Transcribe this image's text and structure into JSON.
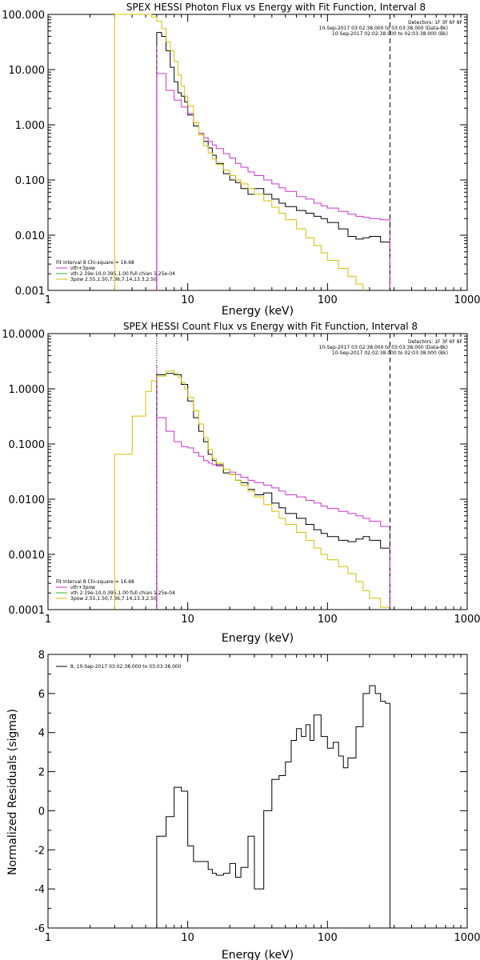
{
  "colors": {
    "data": "#000000",
    "total": "#cc33cc",
    "vth": "#cc2222",
    "pow": "#d4bf00",
    "green": "#22bb22"
  },
  "chart_data": [
    {
      "type": "line",
      "title": "SPEX HESSI Photon Flux vs Energy with Fit Function, Interval 8",
      "xlabel": "Energy (keV)",
      "ylabel": "",
      "x_scale": "log",
      "y_scale": "log",
      "xlim": [
        1,
        1000
      ],
      "ylim": [
        0.001,
        100
      ],
      "x_tick_labels": [
        "1",
        "10",
        "100",
        "1000"
      ],
      "y_tick_labels": [
        "100.000",
        "10.000",
        "1.000",
        "0.100",
        "0.010",
        "0.001"
      ],
      "y_tick_values": [
        100,
        10,
        1,
        0.1,
        0.01,
        0.001
      ],
      "vline_energy": 280,
      "vline_dotted": null,
      "header_lines": [
        "Detectors: 1F 3F 6F 8F",
        "10-Sep-2017 03:02:38.000 to 03:03:38.000 (Data-Bk)",
        "10-Sep-2017 02:02:38.000 to 02:03:38.000 (Bk)"
      ],
      "legend_lines": [
        "Fit Interval 8   Chi-square = 16.68",
        "vth+3pow",
        "vth 2.19e-10,0.395,1.00  full chian 1.25e-04",
        "3pow 2.55,1.50,7.36,7.14,13.3,2.50"
      ],
      "series": [
        {
          "name": "Data-Bk",
          "color": "#000000",
          "x": [
            6,
            6.5,
            7,
            7.5,
            8,
            8.5,
            9,
            9.5,
            10,
            11,
            12,
            13,
            14,
            15,
            16,
            18,
            20,
            22,
            24,
            27,
            30,
            35,
            40,
            45,
            50,
            60,
            70,
            80,
            90,
            100,
            120,
            140,
            160,
            180,
            200,
            240,
            280
          ],
          "y": [
            47,
            40,
            22,
            11,
            6,
            3.8,
            3.3,
            2.6,
            1.5,
            0.95,
            0.7,
            0.5,
            0.38,
            0.28,
            0.2,
            0.13,
            0.1,
            0.09,
            0.07,
            0.055,
            0.07,
            0.055,
            0.045,
            0.038,
            0.033,
            0.028,
            0.025,
            0.022,
            0.02,
            0.017,
            0.013,
            0.0095,
            0.0085,
            0.009,
            0.0095,
            0.0075,
            0.0065
          ]
        },
        {
          "name": "vth+3pow",
          "color": "#cc33cc",
          "x": [
            6,
            7,
            8,
            9,
            10,
            11,
            12,
            13,
            14,
            15,
            16,
            18,
            20,
            22,
            24,
            27,
            30,
            35,
            40,
            45,
            50,
            60,
            70,
            80,
            90,
            100,
            120,
            140,
            160,
            180,
            200,
            240,
            280
          ],
          "y": [
            8.5,
            4.2,
            2.8,
            2.1,
            1.6,
            1.1,
            0.7,
            0.58,
            0.5,
            0.43,
            0.37,
            0.3,
            0.25,
            0.2,
            0.17,
            0.14,
            0.12,
            0.1,
            0.085,
            0.072,
            0.062,
            0.05,
            0.045,
            0.038,
            0.034,
            0.031,
            0.027,
            0.024,
            0.022,
            0.021,
            0.02,
            0.019,
            0.018
          ]
        },
        {
          "name": "3pow",
          "color": "#d4bf00",
          "x": [
            3,
            3.5,
            4,
            4.5,
            5,
            5.5,
            6,
            6.5,
            7,
            7.5,
            8,
            8.5,
            9,
            9.5,
            10,
            11,
            12,
            13,
            14,
            15,
            16,
            18,
            20,
            22,
            24,
            27,
            30,
            35,
            40,
            45,
            50,
            60,
            70,
            80,
            90,
            100,
            120,
            140,
            160,
            180
          ],
          "y": [
            100,
            100,
            100,
            100,
            100,
            90,
            75,
            55,
            32,
            22,
            14,
            8,
            5,
            3.3,
            2.2,
            1.1,
            0.65,
            0.42,
            0.31,
            0.24,
            0.19,
            0.15,
            0.12,
            0.1,
            0.085,
            0.07,
            0.055,
            0.042,
            0.032,
            0.025,
            0.019,
            0.013,
            0.009,
            0.0065,
            0.0048,
            0.0035,
            0.0025,
            0.0018,
            0.0013,
            0.001
          ]
        }
      ]
    },
    {
      "type": "line",
      "title": "SPEX HESSI Count Flux vs Energy with Fit Function, Interval 8",
      "xlabel": "Energy (keV)",
      "ylabel": "",
      "x_scale": "log",
      "y_scale": "log",
      "xlim": [
        1,
        1000
      ],
      "ylim": [
        0.0001,
        10
      ],
      "x_tick_labels": [
        "1",
        "10",
        "100",
        "1000"
      ],
      "y_tick_labels": [
        "10.0000",
        "1.0000",
        "0.1000",
        "0.0100",
        "0.0010",
        "0.0001"
      ],
      "y_tick_values": [
        10,
        1,
        0.1,
        0.01,
        0.001,
        0.0001
      ],
      "vline_energy": 280,
      "vline_dotted": 6,
      "header_lines": [
        "Detectors: 1F 3F 6F 8F",
        "10-Sep-2017 03:02:38.000 to 03:03:38.000 (Data-Bk)",
        "10-Sep-2017 02:02:38.000 to 02:03:38.000 (Bk)"
      ],
      "legend_lines": [
        "Fit Interval 8   Chi-square = 16.68",
        "vth+3pow",
        "vth 2.19e-10,0.395,1.00  full chian 1.25e-04",
        "3pow 2.55,1.50,7.36,7.14,13.3,2.50"
      ],
      "series": [
        {
          "name": "Data-Bk",
          "color": "#000000",
          "x": [
            6,
            7,
            8,
            9,
            10,
            11,
            12,
            13,
            14,
            15,
            16,
            18,
            20,
            22,
            24,
            27,
            30,
            35,
            40,
            45,
            50,
            60,
            70,
            80,
            90,
            100,
            120,
            140,
            160,
            180,
            200,
            240,
            280
          ],
          "y": [
            1.8,
            1.9,
            1.8,
            1.2,
            0.6,
            0.3,
            0.17,
            0.11,
            0.065,
            0.05,
            0.042,
            0.03,
            0.028,
            0.022,
            0.02,
            0.015,
            0.012,
            0.013,
            0.0085,
            0.007,
            0.0055,
            0.0045,
            0.0035,
            0.0028,
            0.0024,
            0.0021,
            0.0018,
            0.0017,
            0.0019,
            0.0021,
            0.0018,
            0.0013,
            0.0009
          ]
        },
        {
          "name": "vth+3pow",
          "color": "#cc33cc",
          "x": [
            6,
            7,
            8,
            9,
            10,
            11,
            12,
            13,
            14,
            15,
            16,
            18,
            20,
            22,
            24,
            27,
            30,
            35,
            40,
            45,
            50,
            60,
            70,
            80,
            90,
            100,
            120,
            140,
            160,
            180,
            200,
            240,
            280
          ],
          "y": [
            0.3,
            0.17,
            0.11,
            0.09,
            0.085,
            0.07,
            0.06,
            0.05,
            0.045,
            0.042,
            0.04,
            0.035,
            0.031,
            0.028,
            0.025,
            0.022,
            0.02,
            0.018,
            0.016,
            0.014,
            0.012,
            0.011,
            0.0095,
            0.0085,
            0.0075,
            0.0068,
            0.006,
            0.0055,
            0.005,
            0.0045,
            0.004,
            0.0032,
            0.0026
          ]
        },
        {
          "name": "3pow",
          "color": "#d4bf00",
          "x": [
            3,
            4,
            5,
            5.5,
            6,
            7,
            8,
            8.5,
            9,
            9.5,
            10,
            11,
            12,
            13,
            14,
            15,
            16,
            18,
            20,
            22,
            24,
            27,
            30,
            35,
            40,
            45,
            50,
            60,
            70,
            80,
            90,
            100,
            120,
            140,
            160,
            180,
            200,
            240,
            280
          ],
          "y": [
            0.065,
            0.32,
            0.9,
            1.4,
            1.7,
            2.1,
            1.9,
            1.6,
            1.3,
            1.0,
            0.7,
            0.4,
            0.23,
            0.13,
            0.08,
            0.055,
            0.045,
            0.035,
            0.028,
            0.022,
            0.018,
            0.014,
            0.011,
            0.008,
            0.006,
            0.0045,
            0.0035,
            0.0025,
            0.0018,
            0.0013,
            0.001,
            0.0008,
            0.0006,
            0.00045,
            0.00032,
            0.00022,
            0.00016,
            0.00011,
            0.0001
          ]
        }
      ]
    },
    {
      "type": "line",
      "title": "",
      "xlabel": "Energy (keV)",
      "ylabel": "Normalized Residuals (sigma)",
      "x_scale": "log",
      "y_scale": "linear",
      "xlim": [
        1,
        1000
      ],
      "ylim": [
        -6,
        8
      ],
      "x_tick_labels": [
        "1",
        "10",
        "100",
        "1000"
      ],
      "y_tick_labels": [
        "8",
        "6",
        "4",
        "2",
        "0",
        "-2",
        "-4",
        "-6"
      ],
      "y_tick_values": [
        8,
        6,
        4,
        2,
        0,
        -2,
        -4,
        -6
      ],
      "legend_lines": [
        "8, 10-Sep-2017 03:02:38.000 to 03:03:38.000"
      ],
      "series": [
        {
          "name": "8, 10-Sep-2017 03:02:38.000 to 03:03:38.000",
          "color": "#000000",
          "x": [
            6,
            7,
            8,
            8.5,
            9,
            10,
            11,
            12,
            13,
            14,
            15,
            16,
            18,
            20,
            22,
            24,
            27,
            30,
            35,
            40,
            45,
            50,
            55,
            60,
            65,
            70,
            75,
            80,
            90,
            100,
            110,
            120,
            130,
            140,
            160,
            180,
            200,
            220,
            240,
            260,
            280
          ],
          "y": [
            -1.3,
            -0.3,
            1.2,
            1.2,
            1.0,
            -1.8,
            -2.6,
            -2.6,
            -2.6,
            -3.0,
            -3.2,
            -3.3,
            -3.2,
            -2.7,
            -3.4,
            -2.9,
            -1.3,
            -4.0,
            0.0,
            1.6,
            1.8,
            2.5,
            3.6,
            4.2,
            3.8,
            4.4,
            3.6,
            4.9,
            3.8,
            3.2,
            3.5,
            2.8,
            2.2,
            2.7,
            4.3,
            6.0,
            6.4,
            6.0,
            5.6,
            5.5,
            5.2
          ]
        }
      ]
    }
  ]
}
